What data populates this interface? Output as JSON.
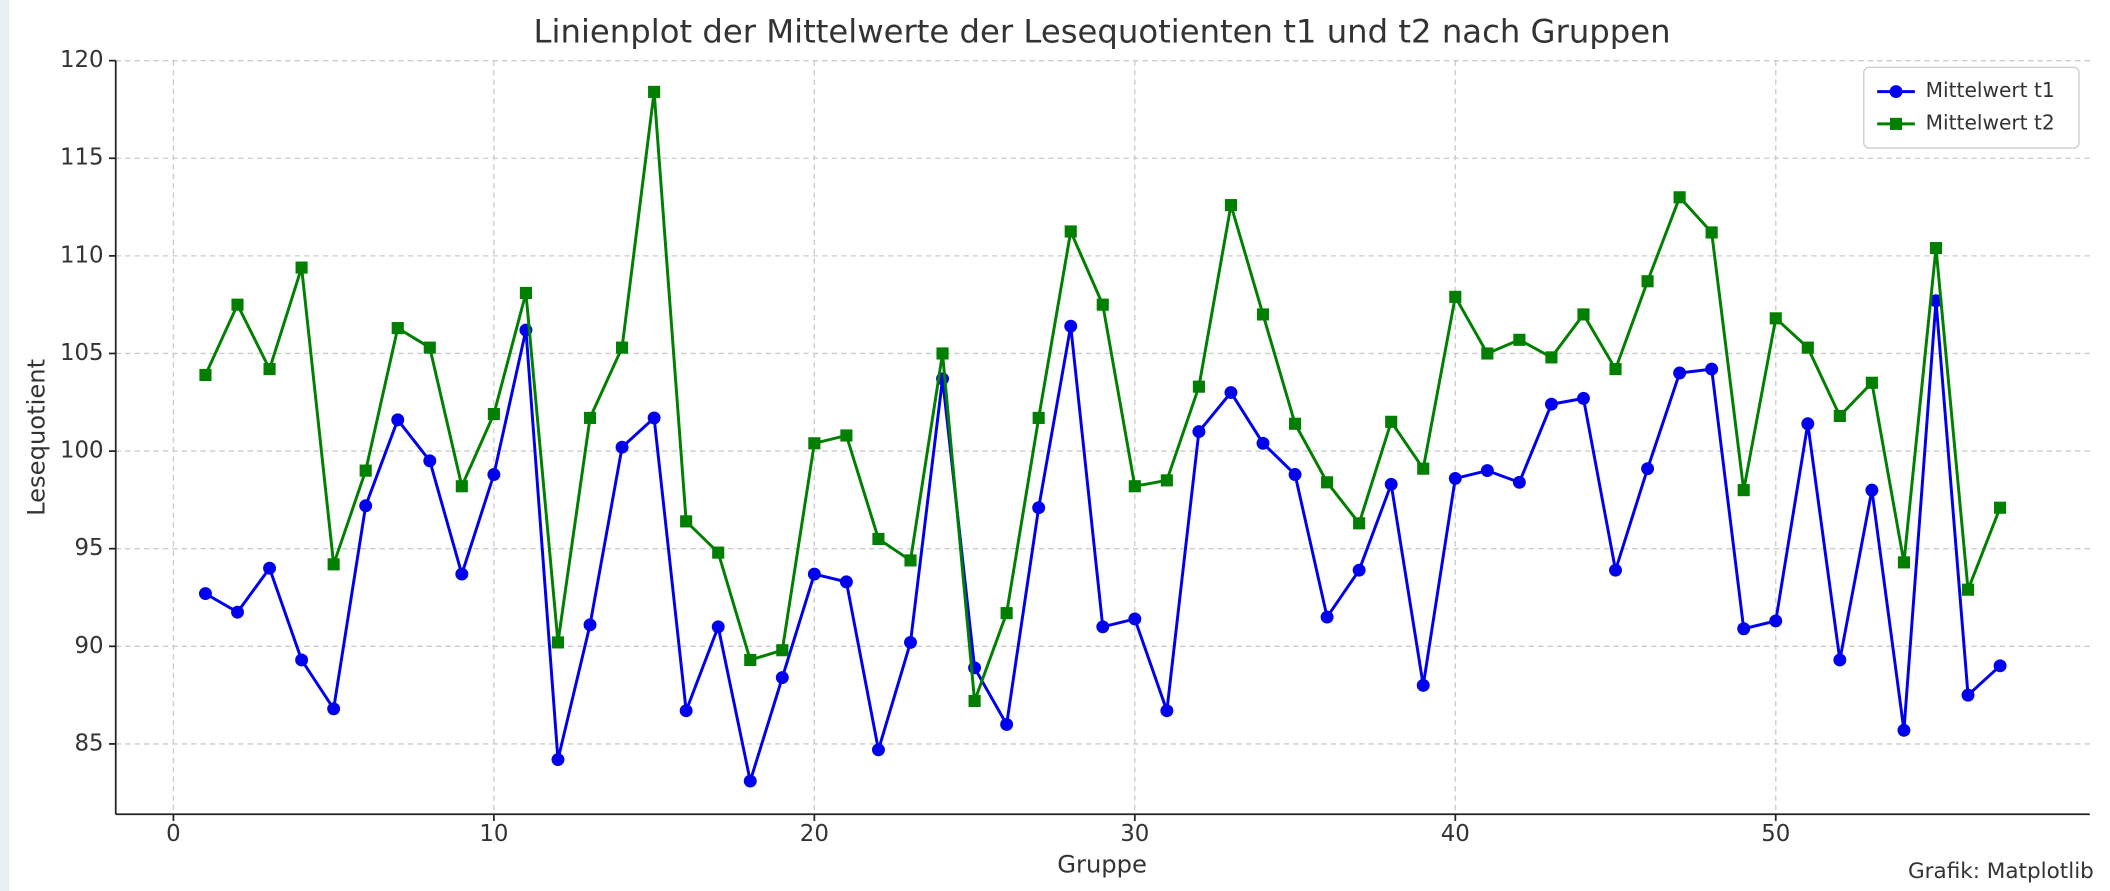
{
  "chart_data": {
    "type": "line",
    "title": "Linienplot der Mittelwerte der Lesequotienten t1 und t2 nach Gruppen",
    "x_label": "Gruppe",
    "y_label": "Lesequotient",
    "annotation": "Grafik: Matplotlib",
    "x": [
      1,
      2,
      3,
      4,
      5,
      6,
      7,
      8,
      9,
      10,
      11,
      12,
      13,
      14,
      15,
      16,
      17,
      18,
      19,
      20,
      21,
      22,
      23,
      24,
      25,
      26,
      27,
      28,
      29,
      30,
      31,
      32,
      33,
      34,
      35,
      36,
      37,
      38,
      39,
      40,
      41,
      42,
      43,
      44,
      45,
      46,
      47,
      48,
      49,
      50,
      51,
      52,
      53,
      54,
      55,
      56,
      57
    ],
    "series": [
      {
        "name": "Mittelwert t1",
        "color": "#0000ee",
        "marker": "circle",
        "values": [
          92.7,
          91.75,
          94.0,
          89.3,
          86.8,
          97.2,
          101.6,
          99.5,
          93.7,
          98.8,
          106.2,
          84.2,
          91.1,
          100.2,
          101.7,
          86.7,
          91.0,
          83.1,
          88.4,
          93.7,
          93.3,
          84.7,
          90.2,
          103.7,
          88.9,
          86.0,
          97.1,
          106.4,
          91.0,
          91.4,
          86.7,
          101.0,
          103.0,
          100.4,
          98.8,
          91.5,
          93.9,
          98.3,
          88.0,
          98.6,
          99.0,
          98.4,
          102.4,
          102.7,
          93.9,
          99.1,
          104.0,
          104.2,
          90.9,
          91.3,
          101.4,
          89.3,
          98.0,
          85.7,
          107.7,
          87.5,
          89.0
        ]
      },
      {
        "name": "Mittelwert t2",
        "color": "#007f00",
        "marker": "square",
        "values": [
          103.9,
          107.5,
          104.2,
          109.4,
          94.2,
          99.0,
          106.3,
          105.3,
          98.2,
          101.9,
          108.1,
          90.2,
          101.7,
          105.3,
          118.4,
          96.4,
          94.8,
          89.3,
          89.8,
          100.4,
          100.8,
          95.5,
          94.4,
          105.0,
          87.2,
          91.7,
          101.7,
          111.25,
          107.5,
          98.2,
          98.5,
          103.3,
          112.6,
          107.0,
          101.4,
          98.4,
          96.3,
          101.5,
          99.1,
          107.9,
          105.0,
          105.7,
          104.8,
          107.0,
          104.2,
          108.7,
          113.0,
          111.2,
          98.0,
          106.8,
          105.3,
          101.8,
          103.5,
          94.3,
          110.4,
          92.9,
          97.1
        ]
      }
    ],
    "xlim": [
      -1.8,
      59.8
    ],
    "ylim": [
      81.4,
      120
    ],
    "xticks": [
      0,
      10,
      20,
      30,
      40,
      50
    ],
    "yticks": [
      85,
      90,
      95,
      100,
      105,
      110,
      115,
      120
    ],
    "grid": true,
    "legend": "upper right"
  }
}
